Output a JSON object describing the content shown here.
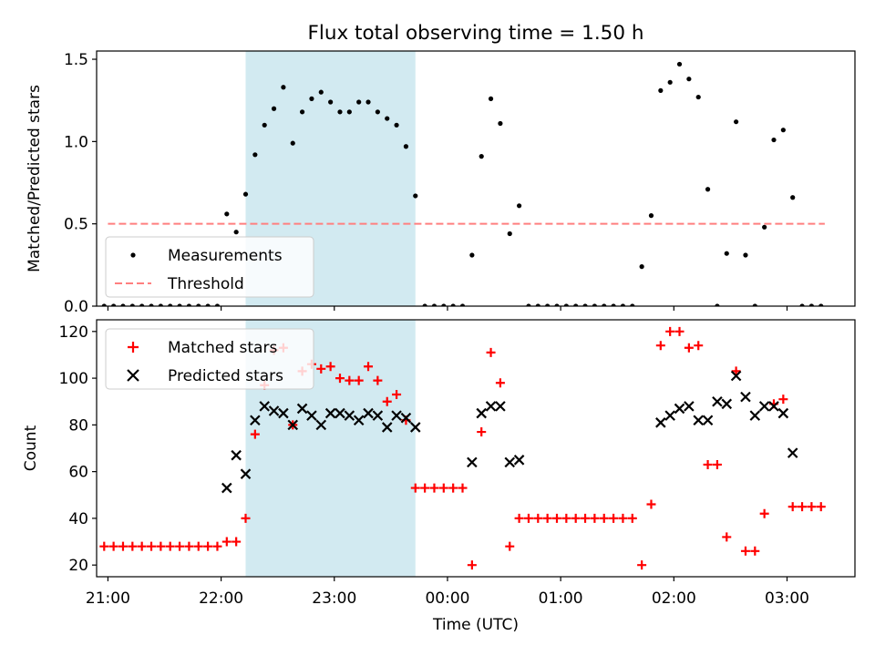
{
  "title": "Flux total observing time = 1.50 h",
  "colors": {
    "shade": "#add8e6",
    "measurement": "#000000",
    "threshold": "#ff7f7f",
    "matched": "#ff0000",
    "predicted": "#000000"
  },
  "chart_data": [
    {
      "type": "scatter",
      "panel": "top",
      "ylabel": "Matched/Predicted stars",
      "xlabel": "",
      "xlim": [
        20.9,
        3.6
      ],
      "ylim": [
        0,
        1.55
      ],
      "yticks": [
        0,
        0.5,
        1.0,
        1.5
      ],
      "ytick_labels": [
        "0.0",
        "0.5",
        "1.0",
        "1.5"
      ],
      "shaded_span": [
        "22:13",
        "23:43"
      ],
      "legend_position": "lower-left",
      "legend": [
        "Measurements",
        "Threshold"
      ],
      "threshold": {
        "name": "Threshold",
        "y": 0.5,
        "x_from": "21:00",
        "x_to": "03:20"
      },
      "series": [
        {
          "name": "Measurements",
          "marker": "dot",
          "x": [
            "20:58",
            "21:03",
            "21:08",
            "21:13",
            "21:18",
            "21:23",
            "21:28",
            "21:33",
            "21:38",
            "21:43",
            "21:48",
            "21:53",
            "21:58",
            "22:03",
            "22:08",
            "22:13",
            "22:18",
            "22:23",
            "22:28",
            "22:33",
            "22:38",
            "22:43",
            "22:48",
            "22:53",
            "22:58",
            "23:03",
            "23:08",
            "23:13",
            "23:18",
            "23:23",
            "23:28",
            "23:33",
            "23:38",
            "23:43",
            "23:48",
            "23:53",
            "23:58",
            "00:03",
            "00:08",
            "00:13",
            "00:18",
            "00:23",
            "00:28",
            "00:33",
            "00:38",
            "00:43",
            "00:48",
            "00:53",
            "00:58",
            "01:03",
            "01:08",
            "01:13",
            "01:18",
            "01:23",
            "01:28",
            "01:33",
            "01:38",
            "01:43",
            "01:48",
            "01:53",
            "01:58",
            "02:03",
            "02:08",
            "02:13",
            "02:18",
            "02:23",
            "02:28",
            "02:33",
            "02:38",
            "02:43",
            "02:48",
            "02:53",
            "02:58",
            "03:03",
            "03:08",
            "03:13",
            "03:18"
          ],
          "y": [
            0,
            0,
            0,
            0,
            0,
            0,
            0,
            0,
            0,
            0,
            0,
            0,
            0,
            0.56,
            0.45,
            0.68,
            0.92,
            1.1,
            1.2,
            1.33,
            0.99,
            1.18,
            1.26,
            1.3,
            1.24,
            1.18,
            1.18,
            1.24,
            1.24,
            1.18,
            1.14,
            1.1,
            0.97,
            0.67,
            0,
            0,
            0,
            0,
            0,
            0.31,
            0.91,
            1.26,
            1.11,
            0.44,
            0.61,
            0,
            0,
            0,
            0,
            0,
            0,
            0,
            0,
            0,
            0,
            0,
            0,
            0.24,
            0.55,
            1.31,
            1.36,
            1.47,
            1.38,
            1.27,
            0.71,
            0,
            0.32,
            1.12,
            0.31,
            0,
            0.48,
            1.01,
            1.07,
            0.66,
            0,
            0,
            0
          ]
        }
      ]
    },
    {
      "type": "scatter",
      "panel": "bottom",
      "xlabel": "Time (UTC)",
      "ylabel": "Count",
      "xlim": [
        20.9,
        3.6
      ],
      "ylim": [
        15,
        125
      ],
      "xticks": [
        "21:00",
        "22:00",
        "23:00",
        "00:00",
        "01:00",
        "02:00",
        "03:00"
      ],
      "yticks": [
        20,
        40,
        60,
        80,
        100,
        120
      ],
      "shaded_span": [
        "22:13",
        "23:43"
      ],
      "legend_position": "upper-left",
      "legend": [
        "Matched stars",
        "Predicted stars"
      ],
      "series": [
        {
          "name": "Matched stars",
          "marker": "plus",
          "x": [
            "20:58",
            "21:03",
            "21:08",
            "21:13",
            "21:18",
            "21:23",
            "21:28",
            "21:33",
            "21:38",
            "21:43",
            "21:48",
            "21:53",
            "21:58",
            "22:03",
            "22:08",
            "22:13",
            "22:18",
            "22:23",
            "22:28",
            "22:33",
            "22:38",
            "22:43",
            "22:48",
            "22:53",
            "22:58",
            "23:03",
            "23:08",
            "23:13",
            "23:18",
            "23:23",
            "23:28",
            "23:33",
            "23:38",
            "23:43",
            "23:48",
            "23:53",
            "23:58",
            "00:03",
            "00:08",
            "00:13",
            "00:18",
            "00:23",
            "00:28",
            "00:33",
            "00:38",
            "00:43",
            "00:48",
            "00:53",
            "00:58",
            "01:03",
            "01:08",
            "01:13",
            "01:18",
            "01:23",
            "01:28",
            "01:33",
            "01:38",
            "01:43",
            "01:48",
            "01:53",
            "01:58",
            "02:03",
            "02:08",
            "02:13",
            "02:18",
            "02:23",
            "02:28",
            "02:33",
            "02:38",
            "02:43",
            "02:48",
            "02:53",
            "02:58",
            "03:03",
            "03:08",
            "03:13",
            "03:18"
          ],
          "y": [
            28,
            28,
            28,
            28,
            28,
            28,
            28,
            28,
            28,
            28,
            28,
            28,
            28,
            30,
            30,
            40,
            76,
            97,
            112,
            113,
            80,
            103,
            106,
            104,
            105,
            100,
            99,
            99,
            105,
            99,
            90,
            93,
            82,
            53,
            53,
            53,
            53,
            53,
            53,
            20,
            77,
            111,
            98,
            28,
            40,
            40,
            40,
            40,
            40,
            40,
            40,
            40,
            40,
            40,
            40,
            40,
            40,
            20,
            46,
            114,
            120,
            120,
            113,
            114,
            63,
            63,
            32,
            103,
            26,
            26,
            42,
            89,
            91,
            45,
            45,
            45,
            45
          ]
        },
        {
          "name": "Predicted stars",
          "marker": "x",
          "x": [
            "22:03",
            "22:08",
            "22:13",
            "22:18",
            "22:23",
            "22:28",
            "22:33",
            "22:38",
            "22:43",
            "22:48",
            "22:53",
            "22:58",
            "23:03",
            "23:08",
            "23:13",
            "23:18",
            "23:23",
            "23:28",
            "23:33",
            "23:38",
            "23:43",
            "00:13",
            "00:18",
            "00:23",
            "00:28",
            "00:33",
            "00:38",
            "01:53",
            "01:58",
            "02:03",
            "02:08",
            "02:13",
            "02:18",
            "02:23",
            "02:28",
            "02:33",
            "02:38",
            "02:43",
            "02:48",
            "02:53",
            "02:58",
            "03:03"
          ],
          "y": [
            53,
            67,
            59,
            82,
            88,
            86,
            85,
            80,
            87,
            84,
            80,
            85,
            85,
            84,
            82,
            85,
            84,
            79,
            84,
            83,
            79,
            64,
            85,
            88,
            88,
            64,
            65,
            81,
            84,
            87,
            88,
            82,
            82,
            90,
            89,
            101,
            92,
            84,
            88,
            88,
            85,
            68
          ]
        }
      ]
    }
  ]
}
